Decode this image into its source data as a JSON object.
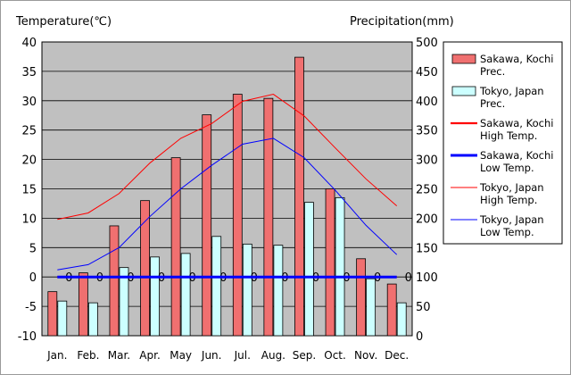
{
  "chart_data": {
    "type": "bar+line",
    "ylabel_left": "Temperature(℃)",
    "ylabel_right": "Precipitation(mm)",
    "categories": [
      "Jan.",
      "Feb.",
      "Mar.",
      "Apr.",
      "May",
      "Jun.",
      "Jul.",
      "Aug.",
      "Sep.",
      "Oct.",
      "Nov.",
      "Dec."
    ],
    "ylim_left": [
      -10,
      40
    ],
    "ylim_right": [
      0,
      500
    ],
    "yticks_left": [
      "40",
      "35",
      "30",
      "25",
      "20",
      "15",
      "10",
      "5",
      "0",
      "-5",
      "-10"
    ],
    "yticks_right": [
      "500",
      "450",
      "400",
      "350",
      "300",
      "250",
      "200",
      "150",
      "100",
      "50",
      "0"
    ],
    "grid": "horizontal",
    "legend_position": "right",
    "background": "#c0c0c0",
    "bar_series": [
      {
        "name": "Sakawa, Kochi Prec.",
        "legend_lines": [
          "Sakawa, Kochi",
          "Prec."
        ],
        "color": "#f07070",
        "axis": "right",
        "values": [
          75,
          107,
          187,
          230,
          303,
          376,
          411,
          404,
          474,
          250,
          131,
          88
        ]
      },
      {
        "name": "Tokyo, Japan Prec.",
        "legend_lines": [
          "Tokyo, Japan",
          "Prec."
        ],
        "color": "#ccffff",
        "axis": "right",
        "values": [
          59,
          56,
          116,
          134,
          140,
          169,
          156,
          154,
          227,
          235,
          97,
          56
        ]
      }
    ],
    "line_series": [
      {
        "name": "Sakawa, Kochi High Temp.",
        "legend_lines": [
          "Sakawa, Kochi",
          "High Temp."
        ],
        "color": "#ff0000",
        "width": 2.2,
        "axis": "left",
        "values": [
          0,
          0,
          0,
          0,
          0,
          0,
          0,
          0,
          0,
          0,
          0,
          0
        ],
        "point_labels": [
          "0",
          "0",
          "0",
          "0",
          "0",
          "0",
          "0",
          "0",
          "0",
          "0",
          "0",
          "0"
        ]
      },
      {
        "name": "Sakawa, Kochi Low Temp.",
        "legend_lines": [
          "Sakawa, Kochi",
          "Low Temp."
        ],
        "color": "#0000ff",
        "width": 3,
        "axis": "left",
        "values": [
          0,
          0,
          0,
          0,
          0,
          0,
          0,
          0,
          0,
          0,
          0,
          0
        ]
      },
      {
        "name": "Tokyo, Japan High Temp.",
        "legend_lines": [
          "Tokyo, Japan",
          "High Temp."
        ],
        "color": "#ff0000",
        "width": 1,
        "axis": "left",
        "values": [
          9.8,
          10.9,
          14.2,
          19.4,
          23.6,
          26.1,
          29.9,
          31.1,
          27.4,
          22.0,
          16.7,
          12.1
        ]
      },
      {
        "name": "Tokyo, Japan Low Temp.",
        "legend_lines": [
          "Tokyo, Japan",
          "Low Temp."
        ],
        "color": "#0000ff",
        "width": 1,
        "axis": "left",
        "values": [
          1.2,
          2.1,
          5.0,
          10.3,
          15.0,
          19.0,
          22.6,
          23.6,
          20.3,
          14.8,
          8.8,
          3.8
        ]
      }
    ]
  }
}
